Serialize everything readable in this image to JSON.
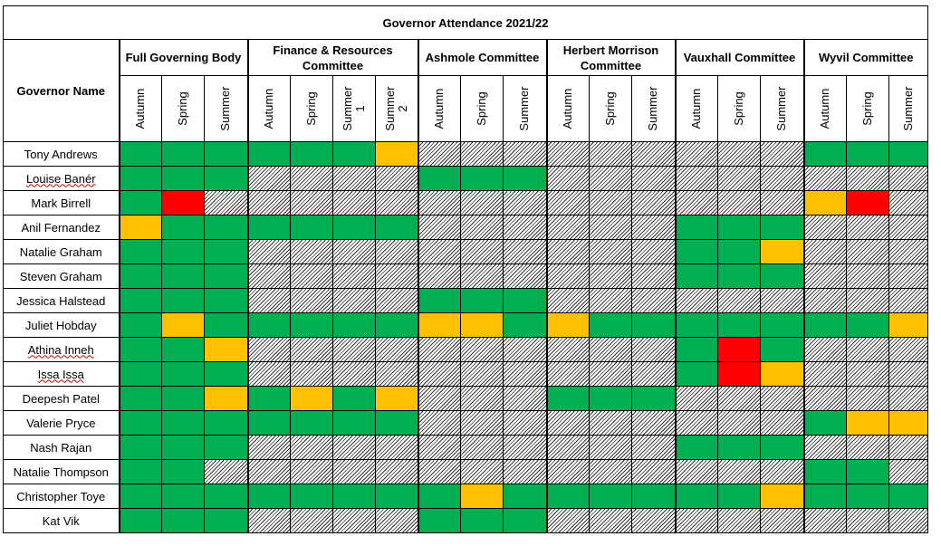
{
  "title": "Governor Attendance 2021/22",
  "name_header": "Governor Name",
  "colors": {
    "present": "#00b050",
    "partial": "#ffc000",
    "absent": "#ff0000"
  },
  "committees": [
    {
      "name": "Full Governing Body",
      "terms": [
        "Autumn",
        "Spring",
        "Summer"
      ]
    },
    {
      "name": "Finance & Resources Committee",
      "terms": [
        "Autumn",
        "Spring",
        "Summer\n1",
        "Summer\n2"
      ]
    },
    {
      "name": "Ashmole Committee",
      "terms": [
        "Autumn",
        "Spring",
        "Summer"
      ]
    },
    {
      "name": "Herbert Morrison Committee",
      "terms": [
        "Autumn",
        "Spring",
        "Summer"
      ]
    },
    {
      "name": "Vauxhall Committee",
      "terms": [
        "Autumn",
        "Spring",
        "Summer"
      ]
    },
    {
      "name": "Wyvil Committee",
      "terms": [
        "Autumn",
        "Spring",
        "Summer"
      ]
    }
  ],
  "governors": [
    {
      "name": "Tony Andrews",
      "attendance": "GGG GGGO NNN NNN NNN GGG"
    },
    {
      "name": "Louise Banér",
      "attendance": "GGG NNNN GGG NNN NNN NNN"
    },
    {
      "name": "Mark Birrell",
      "attendance": "GRN NNNN NNN NNN NNN ORN"
    },
    {
      "name": "Anil Fernandez",
      "attendance": "OGG GGGG NNN NNN GGG NNN"
    },
    {
      "name": "Natalie Graham",
      "attendance": "GGG NNNN NNN NNN GGO NNN"
    },
    {
      "name": "Steven Graham",
      "attendance": "GGG NNNN NNN NNN GGG NNN"
    },
    {
      "name": "Jessica Halstead",
      "attendance": "GGG NNNN GGG NNN NNN NNN"
    },
    {
      "name": "Juliet Hobday",
      "attendance": "GOG GGGG OOG OGG GGG GGO"
    },
    {
      "name": "Athina Inneh",
      "attendance": "GGO NNNN NNN NNN GRG NNN"
    },
    {
      "name": "Issa Issa",
      "attendance": "GGG NNNN NNN NNN GRO NNN"
    },
    {
      "name": "Deepesh Patel",
      "attendance": "GGO GOGO NNN GGG NNN NNN"
    },
    {
      "name": "Valerie Pryce",
      "attendance": "GGG GGGG NNN NNN NNN GOO"
    },
    {
      "name": "Nash Rajan",
      "attendance": "GGG NNNN NNN NNN GGG NNN"
    },
    {
      "name": "Natalie Thompson",
      "attendance": "GGN NNNN NNN NNN NNN GGN"
    },
    {
      "name": "Christopher Toye",
      "attendance": "GGG GGGG GOG GGG GGO GGG"
    },
    {
      "name": "Kat Vik",
      "attendance": "GGG NNNN GGG NNN NNN NNN"
    }
  ]
}
